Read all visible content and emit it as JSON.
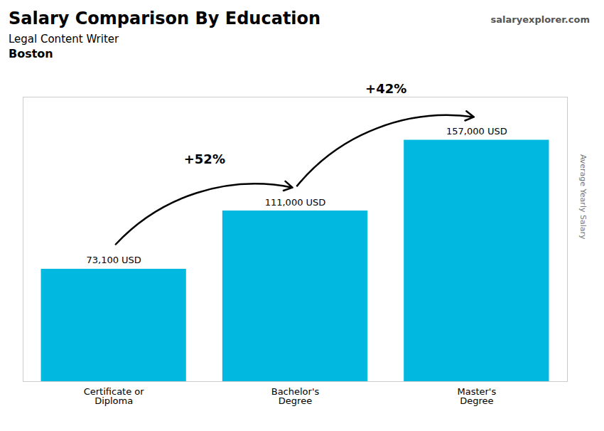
{
  "chart_data": {
    "type": "bar",
    "title": "Salary Comparison By Education",
    "subtitle": [
      "Legal Content Writer",
      "Boston"
    ],
    "ylabel": "Average Yearly Salary",
    "categories": [
      "Certificate or\nDiploma",
      "Bachelor's\nDegree",
      "Master's\nDegree"
    ],
    "values": [
      73100,
      111000,
      157000
    ],
    "value_labels": [
      "73,100 USD",
      "111,000 USD",
      "157,000 USD"
    ],
    "data_labels": true,
    "color": "#00b8e0",
    "ylim": [
      0,
      185000
    ],
    "yticks": [],
    "tick_labels": "x",
    "grid": false,
    "annotations": [
      {
        "text": "salaryexplorer.com"
      },
      {
        "text": "+52%",
        "from": "Certificate or\nDiploma",
        "to": "Bachelor's\nDegree"
      },
      {
        "text": "+42%",
        "from": "Bachelor's\nDegree",
        "to": "Master's\nDegree"
      }
    ]
  }
}
